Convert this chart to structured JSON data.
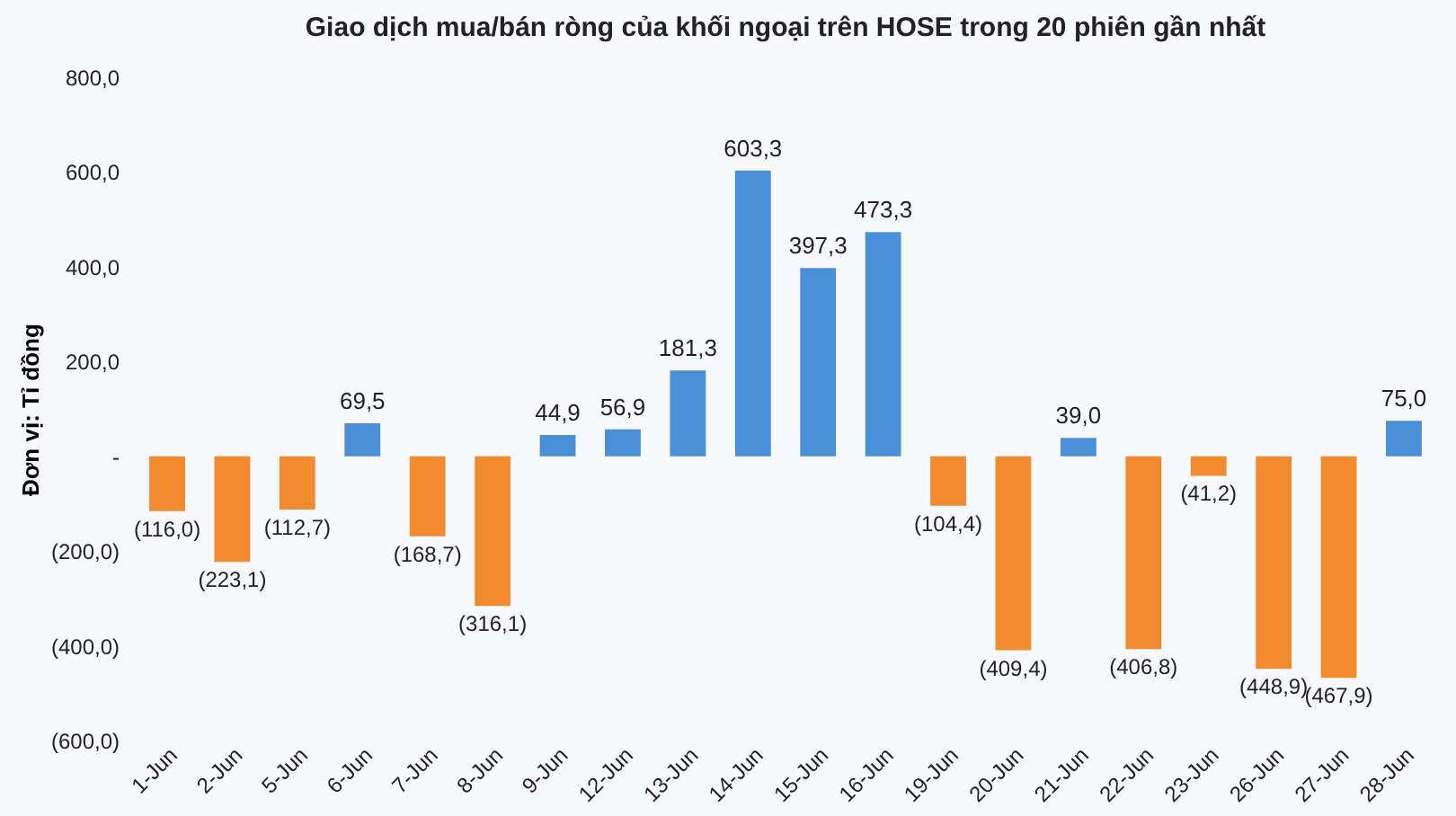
{
  "chart_data": {
    "type": "bar",
    "title": "Giao dịch mua/bán ròng của khối ngoại trên HOSE trong 20 phiên gần nhất",
    "ylabel": "Đơn vị: Tỉ đồng",
    "categories": [
      "1-Jun",
      "2-Jun",
      "5-Jun",
      "6-Jun",
      "7-Jun",
      "8-Jun",
      "9-Jun",
      "12-Jun",
      "13-Jun",
      "14-Jun",
      "15-Jun",
      "16-Jun",
      "19-Jun",
      "20-Jun",
      "21-Jun",
      "22-Jun",
      "23-Jun",
      "26-Jun",
      "27-Jun",
      "28-Jun"
    ],
    "values": [
      -116.0,
      -223.1,
      -112.7,
      69.5,
      -168.7,
      -316.1,
      44.9,
      56.9,
      181.3,
      603.3,
      397.3,
      473.3,
      -104.4,
      -409.4,
      39.0,
      -406.8,
      -41.2,
      -448.9,
      -467.9,
      75.0
    ],
    "value_labels": [
      "(116,0)",
      "(223,1)",
      "(112,7)",
      "69,5",
      "(168,7)",
      "(316,1)",
      "44,9",
      "56,9",
      "181,3",
      "603,3",
      "397,3",
      "473,3",
      "(104,4)",
      "(409,4)",
      "39,0",
      "(406,8)",
      "(41,2)",
      "(448,9)",
      "(467,9)",
      "75,0"
    ],
    "colors": [
      "#f28b30",
      "#f28b30",
      "#f28b30",
      "#4a90d9",
      "#f28b30",
      "#f28b30",
      "#4a90d9",
      "#4a90d9",
      "#4a90d9",
      "#4a90d9",
      "#4a90d9",
      "#4a90d9",
      "#f28b30",
      "#f28b30",
      "#4a90d9",
      "#f28b30",
      "#f28b30",
      "#f28b30",
      "#f28b30",
      "#4a90d9"
    ],
    "ylim": [
      -600,
      800
    ],
    "yticks": [
      {
        "value": -600,
        "label": "(600,0)"
      },
      {
        "value": -400,
        "label": "(400,0)"
      },
      {
        "value": -200,
        "label": "(200,0)"
      },
      {
        "value": 0,
        "label": "-"
      },
      {
        "value": 200,
        "label": "200,0"
      },
      {
        "value": 400,
        "label": "400,0"
      },
      {
        "value": 600,
        "label": "600,0"
      },
      {
        "value": 800,
        "label": "800,0"
      }
    ],
    "grid": false
  }
}
